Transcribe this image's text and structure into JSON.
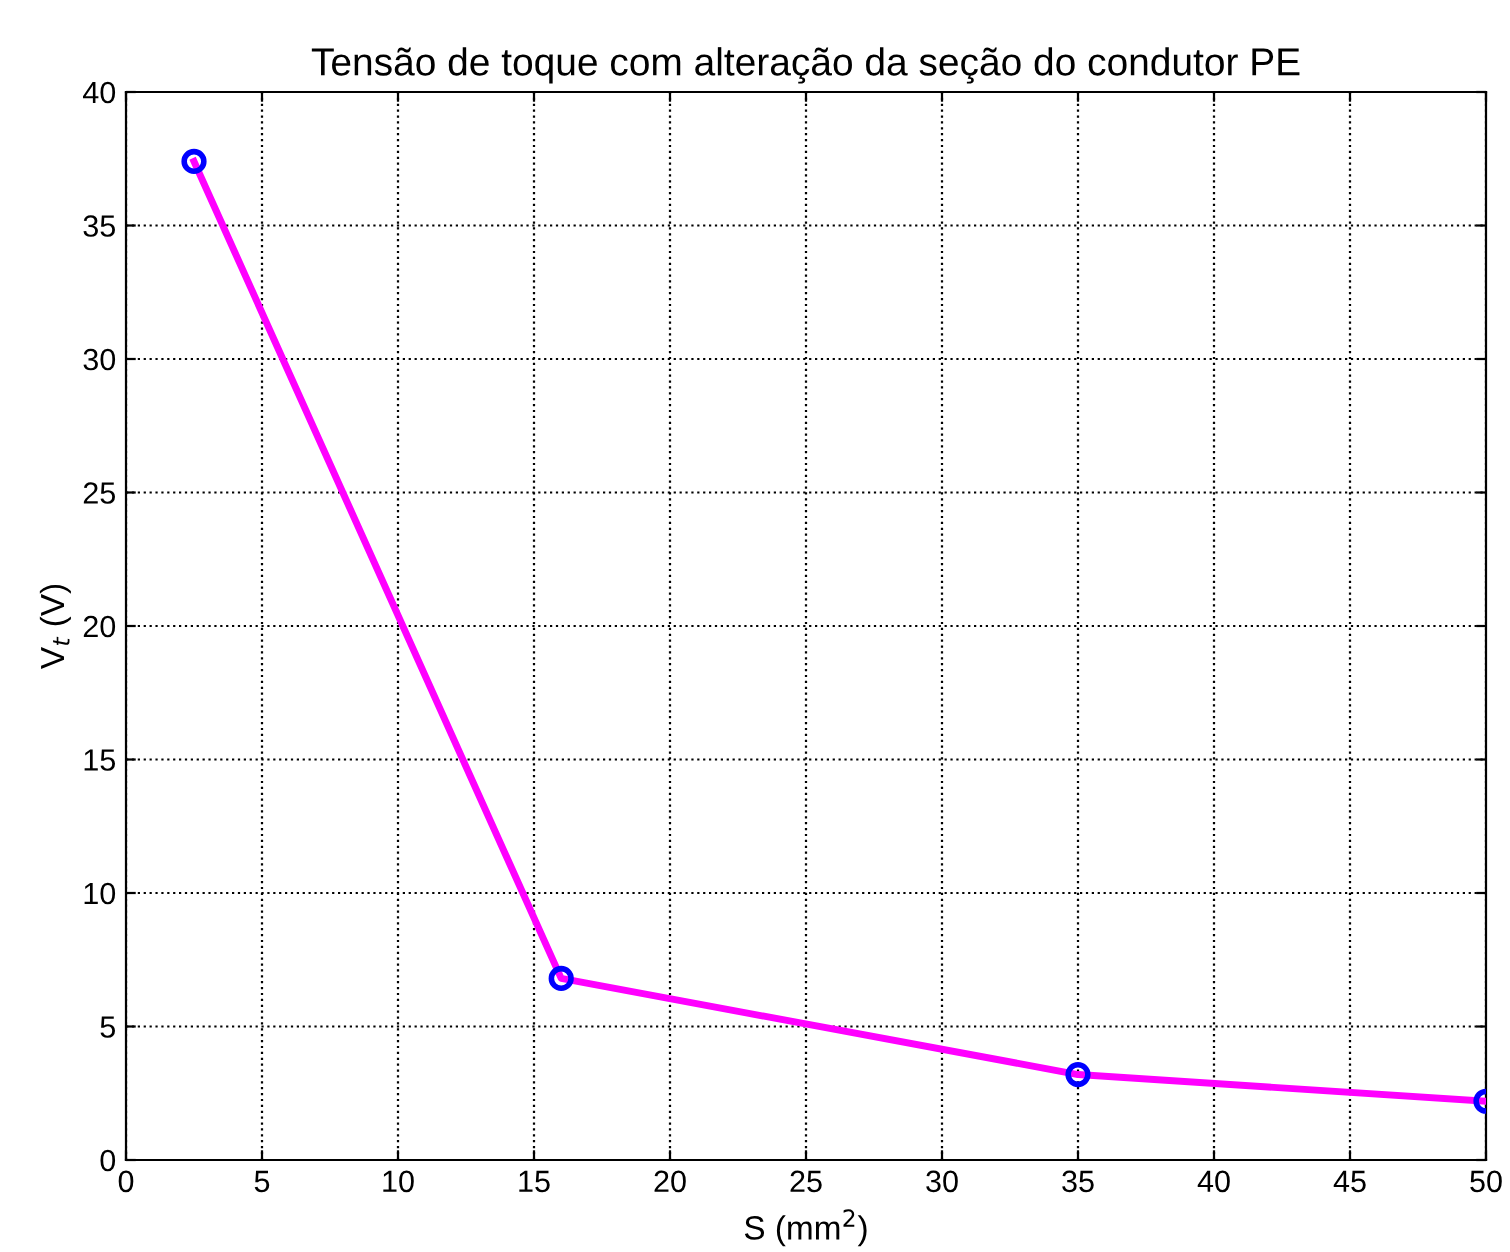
{
  "chart_data": {
    "type": "line",
    "title": "Tensão de toque com alteração da seção do condutor PE",
    "xlabel": "S (mm$^{2}$)",
    "ylabel": "V$_{t}$ (V)",
    "x": [
      2.5,
      16,
      35,
      50
    ],
    "series": [
      {
        "color": "#ff00ff",
        "values": [
          37.4,
          6.8,
          3.2,
          2.2
        ],
        "marker": "none",
        "line_style": "solid"
      },
      {
        "type": "scatter",
        "color": "#0000ff",
        "values": [
          37.4,
          6.8,
          3.2,
          2.2
        ],
        "marker": "circle"
      }
    ],
    "xlim": [
      0,
      50
    ],
    "xticks": [
      0,
      5,
      10,
      15,
      20,
      25,
      30,
      35,
      40,
      45,
      50
    ],
    "ylim": [
      0,
      40
    ],
    "yticks": [
      0,
      5,
      10,
      15,
      20,
      25,
      30,
      35,
      40
    ],
    "grid": true,
    "legend": false
  }
}
